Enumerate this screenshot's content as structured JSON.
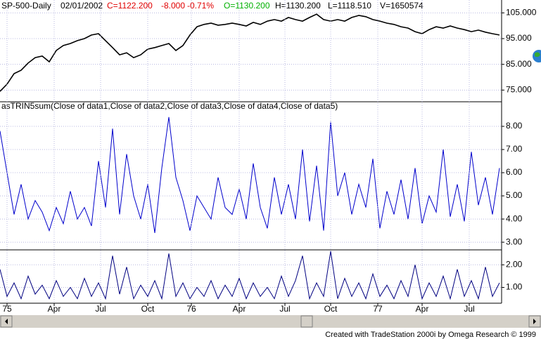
{
  "footer": "Created with TradeStation 2000i by Omega Research © 1999",
  "chart_data": [
    {
      "type": "line",
      "title": "SP-500-Daily",
      "date": "02/01/2002",
      "close": "C=1122.200",
      "change": "-8.000",
      "change_pct": "-0.71%",
      "open": "O=1130.200",
      "high": "H=1130.200",
      "low": "L=1118.510",
      "volume": "V=1650574",
      "x": [
        0,
        1,
        2,
        3,
        4,
        5,
        6,
        7,
        8,
        9,
        10,
        11,
        12,
        13,
        14,
        15,
        16,
        17,
        18,
        19,
        20,
        21,
        22,
        23,
        24,
        25,
        26,
        27,
        28,
        29,
        30,
        31,
        32,
        33,
        34,
        35,
        36,
        37,
        38,
        39,
        40,
        41,
        42,
        43,
        44,
        45,
        46,
        47,
        48,
        49,
        50,
        51,
        52,
        53,
        54,
        55,
        56,
        57,
        58,
        59,
        60,
        61,
        62,
        63,
        64,
        65,
        66,
        67,
        68,
        69,
        70,
        71
      ],
      "xlim": [
        0,
        71.3
      ],
      "series": [
        {
          "color": "#000000",
          "values": [
            74.5,
            77.3,
            81.4,
            82.7,
            85.5,
            87.6,
            88.2,
            86.0,
            90.4,
            92.3,
            93.1,
            94.2,
            95.0,
            96.4,
            96.9,
            94.2,
            91.5,
            88.7,
            89.5,
            87.6,
            88.7,
            90.9,
            91.5,
            92.3,
            93.1,
            90.4,
            92.3,
            96.4,
            99.6,
            100.5,
            101.0,
            100.2,
            100.5,
            101.0,
            100.5,
            99.9,
            101.3,
            100.5,
            101.8,
            102.4,
            101.8,
            103.2,
            102.4,
            101.8,
            103.2,
            104.5,
            102.4,
            101.8,
            102.4,
            101.8,
            103.2,
            104.0,
            103.5,
            102.4,
            101.8,
            101.0,
            100.5,
            99.6,
            99.1,
            97.7,
            96.9,
            98.5,
            99.6,
            99.1,
            99.9,
            99.1,
            98.5,
            97.7,
            98.3,
            97.5,
            96.9,
            96.4
          ]
        }
      ],
      "ylim": [
        71,
        110
      ],
      "yticks": [
        {
          "value": 105,
          "label": "105.000"
        },
        {
          "value": 95,
          "label": "95.000"
        },
        {
          "value": 85,
          "label": "85.000"
        },
        {
          "value": 75,
          "label": "75.000"
        }
      ],
      "grid": true
    },
    {
      "type": "line",
      "title": "asTRIN5sum(Close of data1,Close of data2,Close of data3,Close of data4,Close of data5)",
      "x": [
        0,
        1,
        2,
        3,
        4,
        5,
        6,
        7,
        8,
        9,
        10,
        11,
        12,
        13,
        14,
        15,
        16,
        17,
        18,
        19,
        20,
        21,
        22,
        23,
        24,
        25,
        26,
        27,
        28,
        29,
        30,
        31,
        32,
        33,
        34,
        35,
        36,
        37,
        38,
        39,
        40,
        41,
        42,
        43,
        44,
        45,
        46,
        47,
        48,
        49,
        50,
        51,
        52,
        53,
        54,
        55,
        56,
        57,
        58,
        59,
        60,
        61,
        62,
        63,
        64,
        65,
        66,
        67,
        68,
        69,
        70,
        71
      ],
      "xlim": [
        0,
        71.3
      ],
      "series": [
        {
          "color": "#0000cc",
          "values": [
            7.8,
            6.0,
            4.2,
            5.5,
            4.0,
            4.8,
            4.3,
            3.5,
            4.5,
            3.8,
            5.2,
            4.0,
            4.5,
            3.7,
            6.5,
            4.5,
            7.9,
            4.2,
            6.8,
            5.0,
            4.0,
            5.5,
            3.4,
            6.2,
            8.4,
            5.8,
            4.8,
            3.5,
            5.0,
            4.5,
            4.0,
            5.8,
            4.5,
            4.2,
            5.3,
            4.0,
            6.4,
            4.5,
            3.6,
            5.8,
            4.2,
            5.5,
            4.0,
            7.0,
            3.9,
            6.3,
            3.5,
            8.2,
            5.0,
            6.0,
            4.2,
            5.5,
            4.5,
            6.6,
            3.6,
            5.2,
            4.2,
            5.7,
            4.0,
            6.2,
            3.8,
            5.0,
            4.3,
            7.0,
            4.1,
            5.5,
            3.9,
            6.9,
            4.6,
            5.8,
            4.2,
            6.2
          ]
        }
      ],
      "ylim": [
        2.7,
        9.0
      ],
      "yticks": [
        {
          "value": 8,
          "label": "8.00"
        },
        {
          "value": 7,
          "label": "7.00"
        },
        {
          "value": 6,
          "label": "6.00"
        },
        {
          "value": 5,
          "label": "5.00"
        },
        {
          "value": 4,
          "label": "4.00"
        },
        {
          "value": 3,
          "label": "3.00"
        }
      ],
      "grid": true
    },
    {
      "type": "line",
      "x": [
        0,
        1,
        2,
        3,
        4,
        5,
        6,
        7,
        8,
        9,
        10,
        11,
        12,
        13,
        14,
        15,
        16,
        17,
        18,
        19,
        20,
        21,
        22,
        23,
        24,
        25,
        26,
        27,
        28,
        29,
        30,
        31,
        32,
        33,
        34,
        35,
        36,
        37,
        38,
        39,
        40,
        41,
        42,
        43,
        44,
        45,
        46,
        47,
        48,
        49,
        50,
        51,
        52,
        53,
        54,
        55,
        56,
        57,
        58,
        59,
        60,
        61,
        62,
        63,
        64,
        65,
        66,
        67,
        68,
        69,
        70,
        71
      ],
      "xlim": [
        0,
        71.3
      ],
      "series": [
        {
          "color": "#000080",
          "values": [
            1.8,
            0.6,
            1.2,
            0.5,
            1.5,
            0.7,
            1.1,
            0.5,
            1.3,
            0.6,
            1.0,
            0.5,
            1.4,
            0.6,
            1.2,
            0.5,
            2.4,
            0.7,
            1.9,
            0.5,
            1.1,
            0.6,
            1.3,
            0.5,
            2.5,
            0.6,
            1.2,
            0.5,
            1.0,
            0.6,
            1.3,
            0.5,
            1.1,
            0.6,
            1.4,
            0.5,
            1.2,
            0.6,
            1.0,
            0.5,
            1.5,
            0.6,
            1.3,
            2.4,
            0.5,
            1.2,
            0.6,
            2.6,
            0.5,
            1.4,
            0.6,
            1.2,
            0.5,
            1.6,
            0.6,
            1.1,
            0.5,
            1.3,
            0.6,
            2.0,
            0.5,
            1.2,
            0.6,
            1.5,
            0.5,
            1.8,
            0.6,
            1.3,
            0.5,
            1.9,
            0.6,
            1.2
          ]
        }
      ],
      "ylim": [
        0.3,
        2.6
      ],
      "yticks": [
        {
          "value": 2,
          "label": "2.00"
        },
        {
          "value": 1,
          "label": "1.00"
        }
      ],
      "xticks": [
        {
          "value": 1.0,
          "label": "75"
        },
        {
          "value": 7.7,
          "label": "Apr"
        },
        {
          "value": 14.3,
          "label": "Jul"
        },
        {
          "value": 21.0,
          "label": "Oct"
        },
        {
          "value": 27.2,
          "label": "76"
        },
        {
          "value": 34.0,
          "label": "Apr"
        },
        {
          "value": 40.5,
          "label": "Jul"
        },
        {
          "value": 47.0,
          "label": "Oct"
        },
        {
          "value": 53.7,
          "label": "77"
        },
        {
          "value": 60.0,
          "label": "Apr"
        },
        {
          "value": 66.7,
          "label": "Jul"
        }
      ],
      "grid": true
    }
  ]
}
